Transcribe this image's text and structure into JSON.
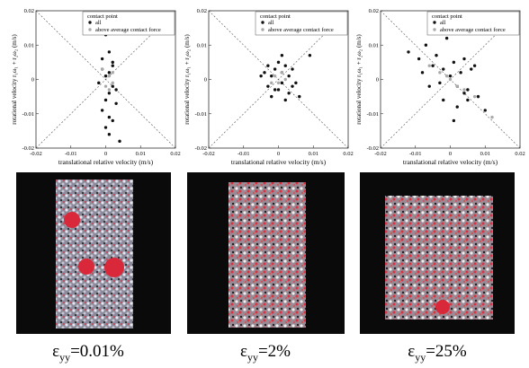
{
  "chart_data": [
    {
      "type": "scatter",
      "xlabel": "translational relative velocity (m/s)",
      "ylabel": "rotational velocity r₁ω₁ + r₂ω₂ (m/s)",
      "legend_title": "contact point",
      "xlim": [
        -0.02,
        0.02
      ],
      "ylim": [
        -0.02,
        0.02
      ],
      "xticks": [
        -0.02,
        -0.01,
        0,
        0.01,
        0.02
      ],
      "yticks": [
        -0.02,
        -0.01,
        0,
        0.01,
        0.02
      ],
      "series": [
        {
          "name": "all",
          "color": "#111111",
          "x": [
            0,
            0.001,
            -0.001,
            0.002,
            0.001,
            0,
            -0.002,
            0.002,
            0.001,
            0,
            0.003,
            -0.001,
            0.001,
            0.002,
            0,
            0.001,
            0.004,
            0.002,
            -0.001,
            0.003
          ],
          "values": [
            0.013,
            0.008,
            0.006,
            0.004,
            0.002,
            0.001,
            -0.001,
            -0.002,
            -0.004,
            -0.006,
            -0.007,
            -0.009,
            -0.011,
            -0.012,
            -0.014,
            -0.016,
            -0.018,
            0.005,
            0.003,
            -0.003
          ]
        },
        {
          "name": "above average contact force",
          "color": "#aaaaaa",
          "x": [
            0.001,
            0,
            0.002,
            -0.001,
            0.001,
            0.002
          ],
          "values": [
            0.001,
            -0.002,
            0.002,
            0.003,
            -0.003,
            -0.001
          ]
        }
      ]
    },
    {
      "type": "scatter",
      "xlabel": "translational relative velocity (m/s)",
      "ylabel": "rotational velocity r₁ω₁ + r₂ω₂ (m/s)",
      "legend_title": "contact point",
      "xlim": [
        -0.02,
        0.02
      ],
      "ylim": [
        -0.02,
        0.02
      ],
      "xticks": [
        -0.02,
        -0.01,
        0,
        0.01,
        0.02
      ],
      "yticks": [
        -0.02,
        -0.01,
        0,
        0.01,
        0.02
      ],
      "series": [
        {
          "name": "all",
          "color": "#111111",
          "x": [
            -0.004,
            -0.003,
            -0.002,
            -0.001,
            0,
            0.001,
            0.002,
            0.003,
            0.004,
            0.005,
            -0.003,
            -0.001,
            0.001,
            0.003,
            0.002,
            -0.002,
            0,
            0.004,
            0.006,
            0.009,
            -0.005,
            0.001
          ],
          "values": [
            0.002,
            0.004,
            0.001,
            0.003,
            0.005,
            0.002,
            0.004,
            0.001,
            0.003,
            -0.001,
            -0.002,
            -0.003,
            -0.001,
            -0.004,
            -0.006,
            -0.005,
            -0.003,
            -0.002,
            -0.005,
            0.007,
            0.001,
            0.007
          ]
        },
        {
          "name": "above average contact force",
          "color": "#aaaaaa",
          "x": [
            -0.001,
            0,
            0.001,
            0.002,
            -0.002
          ],
          "values": [
            0.001,
            -0.001,
            0.002,
            0,
            -0.001
          ]
        }
      ]
    },
    {
      "type": "scatter",
      "xlabel": "translational relative velocity (m/s)",
      "ylabel": "rotational velocity r₁ω₁ + r₂ω₂ (m/s)",
      "legend_title": "contact point",
      "xlim": [
        -0.02,
        0.02
      ],
      "ylim": [
        -0.02,
        0.02
      ],
      "xticks": [
        -0.02,
        -0.01,
        0,
        0.01,
        0.02
      ],
      "yticks": [
        -0.02,
        -0.01,
        0,
        0.01,
        0.02
      ],
      "series": [
        {
          "name": "all",
          "color": "#111111",
          "x": [
            -0.012,
            -0.009,
            -0.007,
            -0.005,
            -0.004,
            -0.002,
            -0.001,
            0,
            0.001,
            0.002,
            0.003,
            0.004,
            0.005,
            0.006,
            0.008,
            0.01,
            -0.006,
            -0.003,
            0.002,
            0.004,
            0.007,
            -0.008,
            0.001,
            0.005,
            -0.002
          ],
          "values": [
            0.008,
            0.006,
            0.01,
            0.004,
            0.007,
            0.003,
            0.012,
            0.001,
            0.005,
            -0.002,
            0.002,
            -0.004,
            -0.006,
            0.003,
            -0.005,
            -0.009,
            -0.002,
            -0.001,
            -0.008,
            0.006,
            0.004,
            0.002,
            -0.012,
            -0.003,
            -0.006
          ]
        },
        {
          "name": "above average contact force",
          "color": "#aaaaaa",
          "x": [
            -0.006,
            -0.003,
            0,
            0.002,
            0.004,
            0.007,
            -0.001,
            0.012
          ],
          "values": [
            0.004,
            0.002,
            0,
            -0.002,
            -0.003,
            -0.005,
            0.001,
            -0.011
          ]
        }
      ]
    }
  ],
  "figure_captions": [
    {
      "symbol": "ε",
      "subscript": "yy",
      "value": "=0.01%"
    },
    {
      "symbol": "ε",
      "subscript": "yy",
      "value": "=2%"
    },
    {
      "symbol": "ε",
      "subscript": "yy",
      "value": "=25%"
    }
  ]
}
